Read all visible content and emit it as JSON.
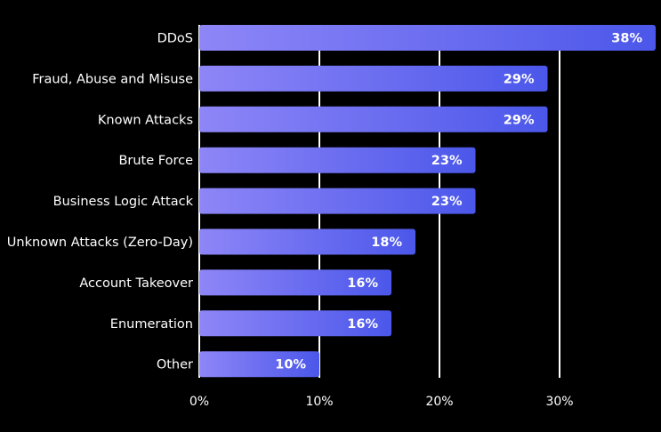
{
  "chart_data": {
    "type": "bar",
    "orientation": "horizontal",
    "title": "",
    "xlabel": "",
    "ylabel": "",
    "categories": [
      "DDoS",
      "Fraud, Abuse and Misuse",
      "Known Attacks",
      "Brute Force",
      "Business Logic Attack",
      "Unknown Attacks (Zero-Day)",
      "Account Takeover",
      "Enumeration",
      "Other"
    ],
    "values": [
      38,
      29,
      29,
      23,
      23,
      18,
      16,
      16,
      10
    ],
    "value_labels": [
      "38%",
      "29%",
      "29%",
      "23%",
      "23%",
      "18%",
      "16%",
      "16%",
      "10%"
    ],
    "xlim": [
      0,
      38
    ],
    "x_ticks": [
      0,
      10,
      20,
      30
    ],
    "x_tick_labels": [
      "0%",
      "10%",
      "20%",
      "30%"
    ],
    "grid": "vertical lines at x ticks",
    "legend": "none",
    "colors": {
      "background": "#000000",
      "bar_gradient_start": "#8e86f7",
      "bar_gradient_end": "#4b57ea",
      "gridline": "#ffffff",
      "text": "#ffffff"
    }
  }
}
